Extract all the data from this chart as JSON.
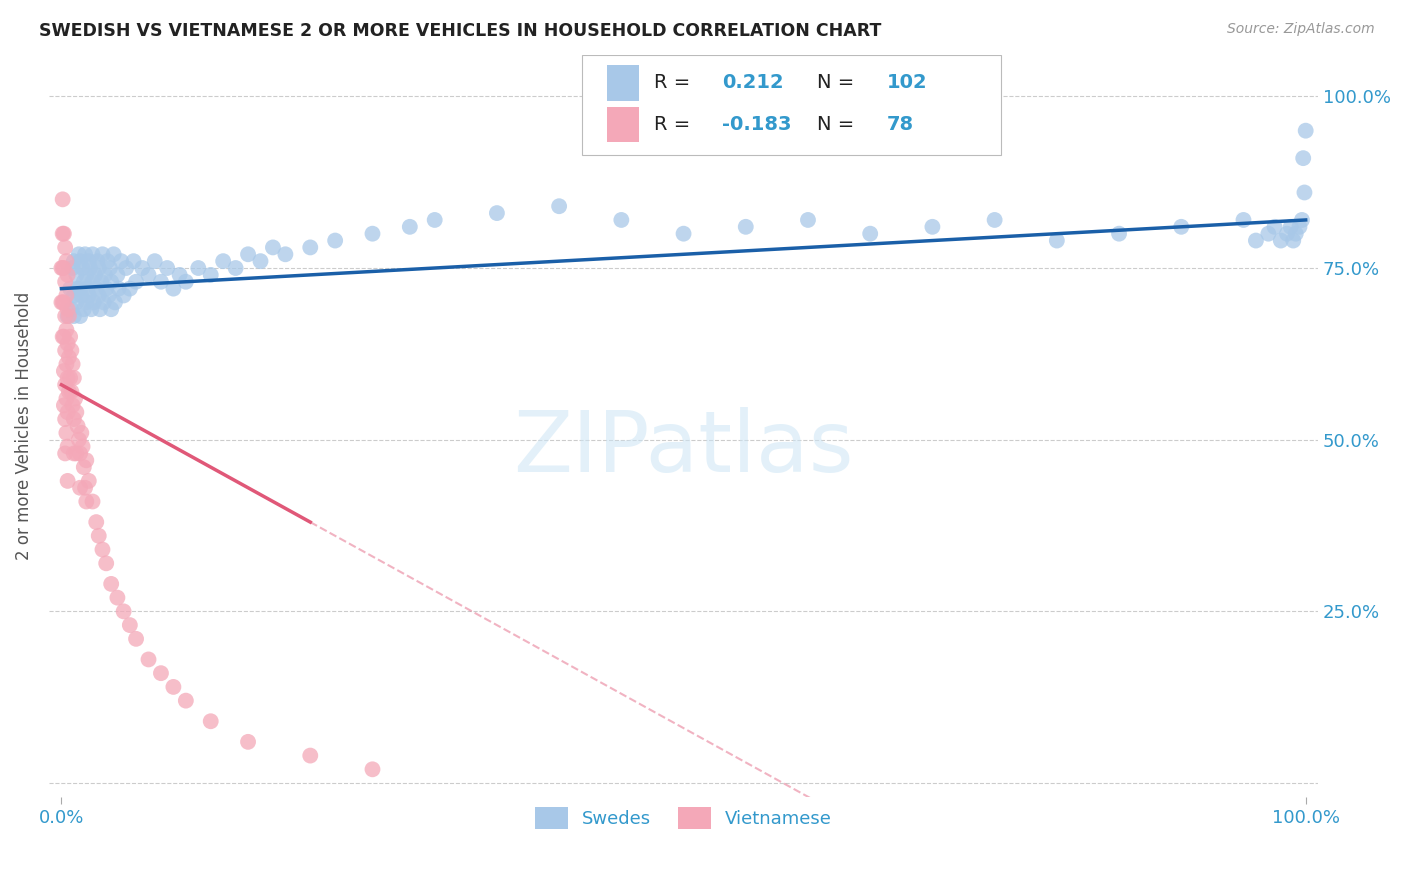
{
  "title": "SWEDISH VS VIETNAMESE 2 OR MORE VEHICLES IN HOUSEHOLD CORRELATION CHART",
  "source": "Source: ZipAtlas.com",
  "ylabel": "2 or more Vehicles in Household",
  "watermark": "ZIPatlas",
  "blue_color": "#a8c8e8",
  "pink_color": "#f4a8b8",
  "blue_line_color": "#1a5fa8",
  "pink_line_color": "#e05878",
  "title_color": "#222222",
  "source_color": "#999999",
  "axis_label_color": "#3399cc",
  "grid_color": "#cccccc",
  "swedish_x": [
    0.005,
    0.007,
    0.008,
    0.009,
    0.01,
    0.01,
    0.01,
    0.012,
    0.012,
    0.013,
    0.014,
    0.015,
    0.015,
    0.015,
    0.016,
    0.017,
    0.018,
    0.018,
    0.019,
    0.02,
    0.02,
    0.021,
    0.022,
    0.022,
    0.023,
    0.024,
    0.025,
    0.025,
    0.026,
    0.027,
    0.028,
    0.029,
    0.03,
    0.03,
    0.031,
    0.032,
    0.033,
    0.034,
    0.035,
    0.036,
    0.037,
    0.038,
    0.039,
    0.04,
    0.04,
    0.042,
    0.043,
    0.045,
    0.046,
    0.048,
    0.05,
    0.052,
    0.055,
    0.058,
    0.06,
    0.065,
    0.07,
    0.075,
    0.08,
    0.085,
    0.09,
    0.095,
    0.1,
    0.11,
    0.12,
    0.13,
    0.14,
    0.15,
    0.16,
    0.17,
    0.18,
    0.2,
    0.22,
    0.25,
    0.28,
    0.3,
    0.35,
    0.4,
    0.45,
    0.5,
    0.55,
    0.6,
    0.65,
    0.7,
    0.75,
    0.8,
    0.85,
    0.9,
    0.95,
    0.96,
    0.97,
    0.975,
    0.98,
    0.985,
    0.988,
    0.99,
    0.992,
    0.995,
    0.997,
    0.998,
    0.999,
    1.0
  ],
  "swedish_y": [
    0.68,
    0.72,
    0.69,
    0.75,
    0.68,
    0.71,
    0.76,
    0.7,
    0.74,
    0.72,
    0.77,
    0.68,
    0.72,
    0.76,
    0.71,
    0.75,
    0.69,
    0.73,
    0.77,
    0.7,
    0.74,
    0.72,
    0.76,
    0.71,
    0.75,
    0.69,
    0.73,
    0.77,
    0.7,
    0.74,
    0.72,
    0.76,
    0.71,
    0.75,
    0.69,
    0.73,
    0.77,
    0.7,
    0.74,
    0.72,
    0.76,
    0.71,
    0.75,
    0.69,
    0.73,
    0.77,
    0.7,
    0.74,
    0.72,
    0.76,
    0.71,
    0.75,
    0.72,
    0.76,
    0.73,
    0.75,
    0.74,
    0.76,
    0.73,
    0.75,
    0.72,
    0.74,
    0.73,
    0.75,
    0.74,
    0.76,
    0.75,
    0.77,
    0.76,
    0.78,
    0.77,
    0.78,
    0.79,
    0.8,
    0.81,
    0.82,
    0.83,
    0.84,
    0.82,
    0.8,
    0.81,
    0.82,
    0.8,
    0.81,
    0.82,
    0.79,
    0.8,
    0.81,
    0.82,
    0.79,
    0.8,
    0.81,
    0.79,
    0.8,
    0.81,
    0.79,
    0.8,
    0.81,
    0.82,
    0.91,
    0.86,
    0.95
  ],
  "vietnamese_x": [
    0.0,
    0.0,
    0.001,
    0.001,
    0.001,
    0.001,
    0.001,
    0.002,
    0.002,
    0.002,
    0.002,
    0.002,
    0.002,
    0.003,
    0.003,
    0.003,
    0.003,
    0.003,
    0.003,
    0.003,
    0.004,
    0.004,
    0.004,
    0.004,
    0.004,
    0.004,
    0.005,
    0.005,
    0.005,
    0.005,
    0.005,
    0.005,
    0.005,
    0.006,
    0.006,
    0.006,
    0.007,
    0.007,
    0.008,
    0.008,
    0.009,
    0.009,
    0.01,
    0.01,
    0.01,
    0.011,
    0.012,
    0.012,
    0.013,
    0.014,
    0.015,
    0.015,
    0.016,
    0.017,
    0.018,
    0.019,
    0.02,
    0.02,
    0.022,
    0.025,
    0.028,
    0.03,
    0.033,
    0.036,
    0.04,
    0.045,
    0.05,
    0.055,
    0.06,
    0.07,
    0.08,
    0.09,
    0.1,
    0.12,
    0.15,
    0.2,
    0.25
  ],
  "vietnamese_y": [
    0.75,
    0.7,
    0.85,
    0.8,
    0.75,
    0.7,
    0.65,
    0.8,
    0.75,
    0.7,
    0.65,
    0.6,
    0.55,
    0.78,
    0.73,
    0.68,
    0.63,
    0.58,
    0.53,
    0.48,
    0.76,
    0.71,
    0.66,
    0.61,
    0.56,
    0.51,
    0.74,
    0.69,
    0.64,
    0.59,
    0.54,
    0.49,
    0.44,
    0.68,
    0.62,
    0.57,
    0.65,
    0.59,
    0.63,
    0.57,
    0.61,
    0.55,
    0.59,
    0.53,
    0.48,
    0.56,
    0.54,
    0.48,
    0.52,
    0.5,
    0.48,
    0.43,
    0.51,
    0.49,
    0.46,
    0.43,
    0.47,
    0.41,
    0.44,
    0.41,
    0.38,
    0.36,
    0.34,
    0.32,
    0.29,
    0.27,
    0.25,
    0.23,
    0.21,
    0.18,
    0.16,
    0.14,
    0.12,
    0.09,
    0.06,
    0.04,
    0.02
  ],
  "swedish_line_x": [
    0.0,
    1.0
  ],
  "swedish_line_y": [
    0.72,
    0.82
  ],
  "vietnamese_line_x": [
    0.0,
    0.2
  ],
  "vietnamese_line_y": [
    0.58,
    0.38
  ],
  "dashed_line_x": [
    0.2,
    1.0
  ],
  "dashed_line_y": [
    0.38,
    -0.42
  ],
  "xlim": [
    -0.01,
    1.01
  ],
  "ylim": [
    -0.02,
    1.06
  ],
  "yticks": [
    0.0,
    0.25,
    0.5,
    0.75,
    1.0
  ],
  "ytick_labels_right": [
    "",
    "25.0%",
    "50.0%",
    "75.0%",
    "100.0%"
  ],
  "xtick_positions": [
    0.0,
    1.0
  ],
  "xtick_labels": [
    "0.0%",
    "100.0%"
  ]
}
